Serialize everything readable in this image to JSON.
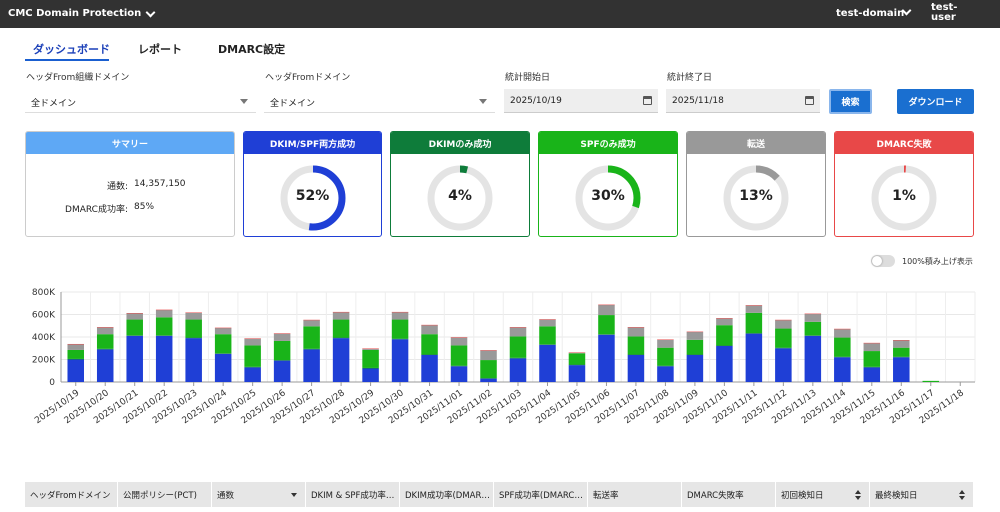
{
  "topbar": {
    "app_name": "CMC Domain Protection",
    "domain": "test-domain",
    "user": "test-\nuser"
  },
  "tabs": [
    {
      "label": "ダッシュボード"
    },
    {
      "label": "レポート"
    },
    {
      "label": "DMARC設定"
    }
  ],
  "filters": {
    "org_domain_label": "ヘッダFrom組織ドメイン",
    "org_domain_value": "全ドメイン",
    "from_domain_label": "ヘッダFromドメイン",
    "from_domain_value": "全ドメイン",
    "start_label": "統計開始日",
    "start_value": "2025/10/19",
    "end_label": "統計終了日",
    "end_value": "2025/11/18",
    "search_label": "検索",
    "download_label": "ダウンロード"
  },
  "summary": {
    "title": "サマリー",
    "count_label": "通数:",
    "count_value": "14,357,150",
    "rate_label": "DMARC成功率:",
    "rate_value": "85%",
    "color": "#5ea8f5"
  },
  "cards": [
    {
      "title": "DKIM/SPF両方成功",
      "pct": "52%",
      "value": 52,
      "color": "#1f3fd6"
    },
    {
      "title": "DKIMのみ成功",
      "pct": "4%",
      "value": 4,
      "color": "#0e7c3a"
    },
    {
      "title": "SPFのみ成功",
      "pct": "30%",
      "value": 30,
      "color": "#19b419"
    },
    {
      "title": "転送",
      "pct": "13%",
      "value": 13,
      "color": "#999999"
    },
    {
      "title": "DMARC失敗",
      "pct": "1%",
      "value": 1,
      "color": "#e84848"
    }
  ],
  "toggle": {
    "label": "100%積み上げ表示"
  },
  "chart_data": {
    "type": "bar",
    "stacked": true,
    "categories": [
      "2025/10/19",
      "2025/10/20",
      "2025/10/21",
      "2025/10/22",
      "2025/10/23",
      "2025/10/24",
      "2025/10/25",
      "2025/10/26",
      "2025/10/27",
      "2025/10/28",
      "2025/10/29",
      "2025/10/30",
      "2025/10/31",
      "2025/11/01",
      "2025/11/02",
      "2025/11/03",
      "2025/11/04",
      "2025/11/05",
      "2025/11/06",
      "2025/11/07",
      "2025/11/08",
      "2025/11/09",
      "2025/11/10",
      "2025/11/11",
      "2025/11/12",
      "2025/11/13",
      "2025/11/14",
      "2025/11/15",
      "2025/11/16",
      "2025/11/17",
      "2025/11/18"
    ],
    "yticks": [
      "0",
      "200K",
      "400K",
      "600K",
      "800K"
    ],
    "ylim": [
      0,
      800000
    ],
    "series": [
      {
        "color": "#1f3fd6",
        "values": [
          200000,
          290000,
          410000,
          410000,
          390000,
          250000,
          130000,
          190000,
          290000,
          390000,
          120000,
          380000,
          240000,
          140000,
          30000,
          210000,
          330000,
          150000,
          420000,
          240000,
          140000,
          240000,
          320000,
          430000,
          300000,
          410000,
          220000,
          130000,
          220000,
          0,
          0
        ]
      },
      {
        "color": "#0e7c3a",
        "values": [
          5000,
          5000,
          5000,
          5000,
          5000,
          5000,
          5000,
          5000,
          5000,
          5000,
          5000,
          5000,
          5000,
          5000,
          5000,
          5000,
          5000,
          5000,
          5000,
          5000,
          5000,
          5000,
          5000,
          5000,
          5000,
          5000,
          5000,
          5000,
          5000,
          0,
          0
        ]
      },
      {
        "color": "#19b419",
        "values": [
          80000,
          130000,
          140000,
          160000,
          160000,
          170000,
          190000,
          170000,
          200000,
          160000,
          160000,
          170000,
          180000,
          180000,
          160000,
          190000,
          160000,
          100000,
          170000,
          160000,
          160000,
          130000,
          180000,
          180000,
          170000,
          120000,
          170000,
          140000,
          80000,
          10000,
          0
        ]
      },
      {
        "color": "#999999",
        "values": [
          50000,
          60000,
          55000,
          65000,
          60000,
          55000,
          60000,
          65000,
          55000,
          65000,
          10000,
          65000,
          80000,
          70000,
          85000,
          80000,
          60000,
          5000,
          90000,
          80000,
          70000,
          70000,
          60000,
          65000,
          75000,
          70000,
          75000,
          70000,
          65000,
          0,
          0
        ]
      },
      {
        "color": "#e84848",
        "values": [
          3000,
          3000,
          3000,
          3000,
          3000,
          3000,
          3000,
          3000,
          3000,
          3000,
          3000,
          3000,
          3000,
          3000,
          3000,
          3000,
          3000,
          3000,
          3000,
          3000,
          3000,
          3000,
          3000,
          3000,
          3000,
          3000,
          3000,
          3000,
          3000,
          0,
          0
        ]
      }
    ],
    "grid": true
  },
  "table": {
    "columns": [
      {
        "label": "ヘッダFromドメイン",
        "sort": ""
      },
      {
        "label": "公開ポリシー(PCT)",
        "sort": ""
      },
      {
        "label": "通数",
        "sort": "down"
      },
      {
        "label": "DKIM & SPF成功率…",
        "sort": ""
      },
      {
        "label": "DKIM成功率(DMAR…",
        "sort": ""
      },
      {
        "label": "SPF成功率(DMARC…",
        "sort": ""
      },
      {
        "label": "転送率",
        "sort": ""
      },
      {
        "label": "DMARC失敗率",
        "sort": ""
      },
      {
        "label": "初回検知日",
        "sort": "both"
      },
      {
        "label": "最終検知日",
        "sort": "both"
      }
    ]
  }
}
